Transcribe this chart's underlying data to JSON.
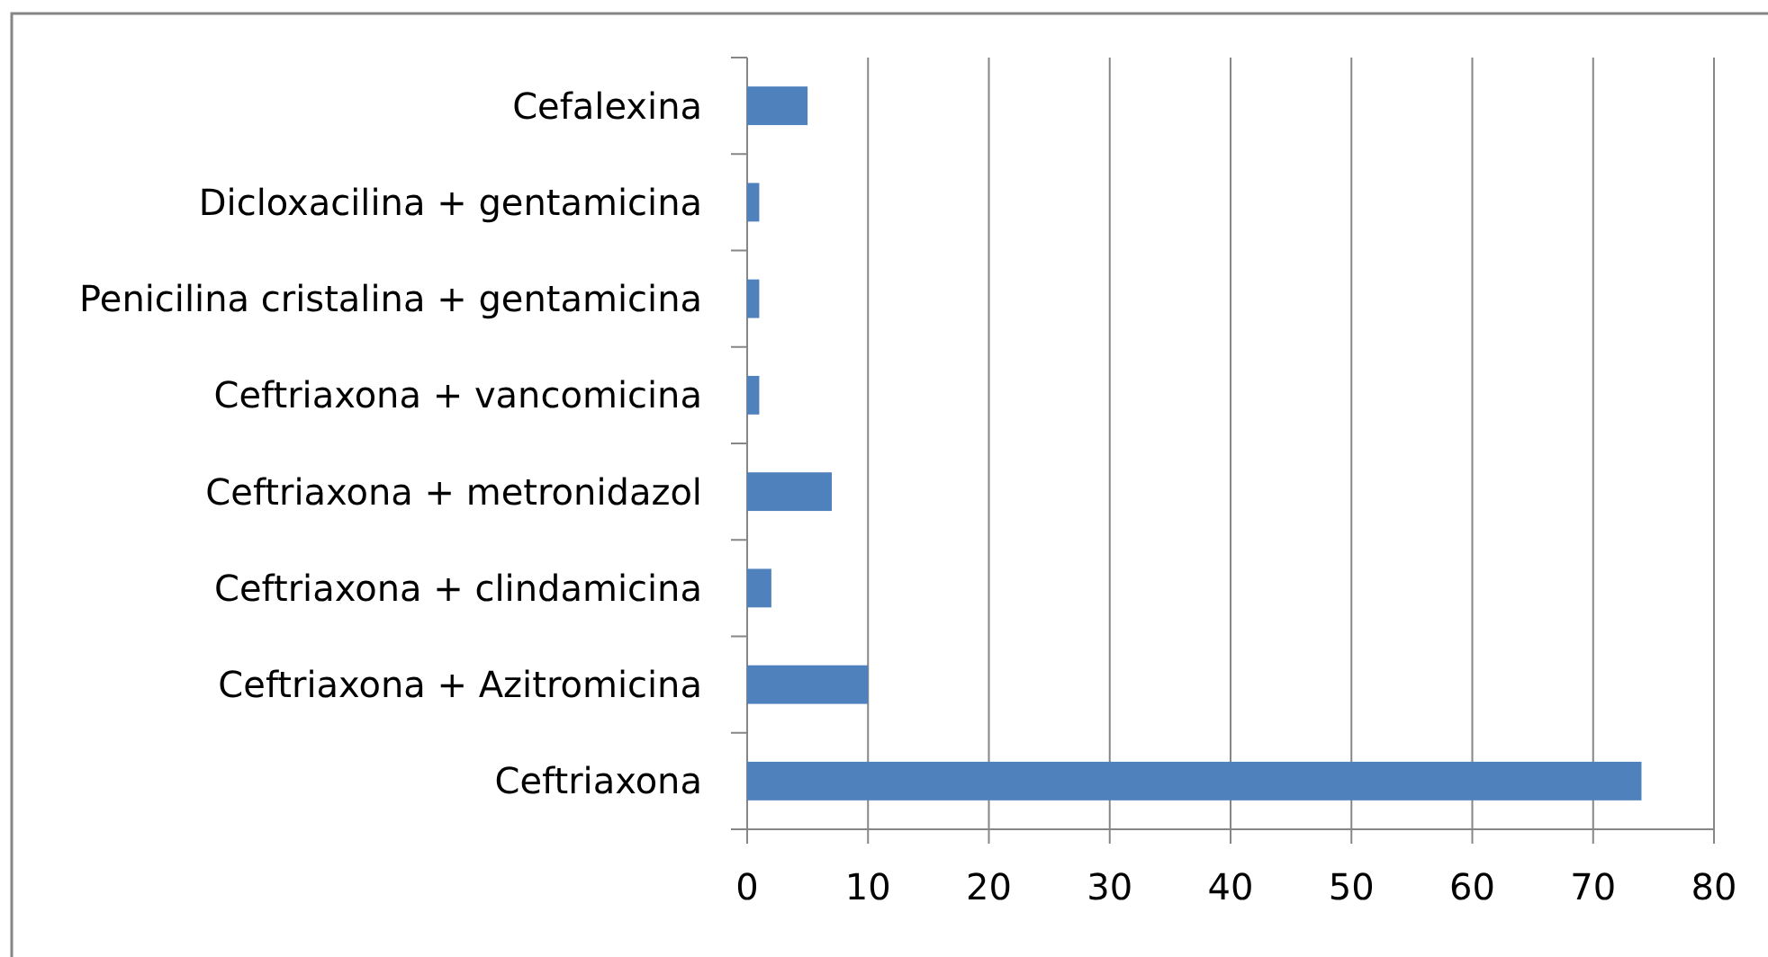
{
  "chart_data": {
    "type": "bar",
    "orientation": "horizontal",
    "categories": [
      "Cefalexina",
      "Dicloxacilina + gentamicina",
      "Penicilina cristalina + gentamicina",
      "Ceftriaxona + vancomicina",
      "Ceftriaxona + metronidazol",
      "Ceftriaxona + clindamicina",
      "Ceftriaxona + Azitromicina",
      "Ceftriaxona"
    ],
    "values": [
      5,
      1,
      1,
      1,
      7,
      2,
      10,
      74
    ],
    "color": "#4f81bd",
    "xlim": [
      0,
      80
    ],
    "xticks": [
      0,
      10,
      20,
      30,
      40,
      50,
      60,
      70,
      80
    ],
    "grid": "x"
  }
}
